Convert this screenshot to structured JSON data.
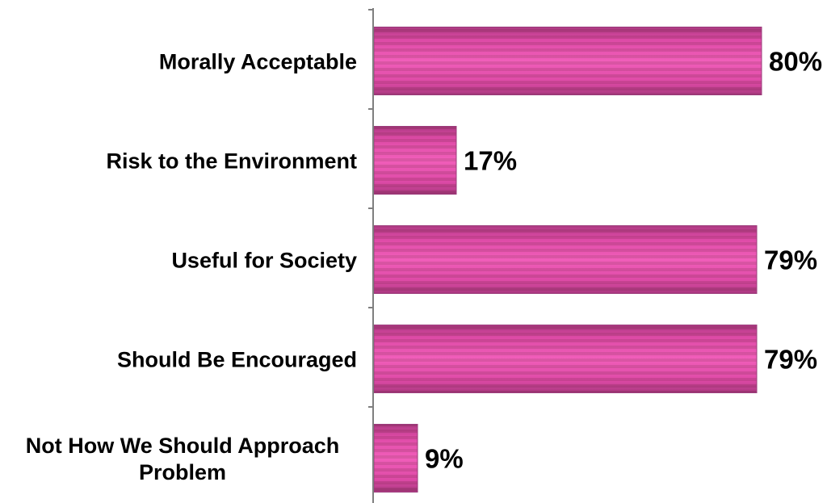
{
  "chart_data": {
    "type": "bar",
    "orientation": "horizontal",
    "categories": [
      "Morally Acceptable",
      "Risk to the Environment",
      "Useful for Society",
      "Should Be Encouraged",
      "Not How We Should Approach Problem"
    ],
    "category_lines": [
      [
        "Morally Acceptable"
      ],
      [
        "Risk to the Environment"
      ],
      [
        "Useful for Society"
      ],
      [
        "Should Be Encouraged"
      ],
      [
        "Not How We Should Approach",
        "Problem"
      ]
    ],
    "values": [
      80,
      17,
      79,
      79,
      9
    ],
    "value_labels": [
      "80%",
      "17%",
      "79%",
      "79%",
      "9%"
    ],
    "xlim": [
      0,
      100
    ],
    "title": "",
    "xlabel": "",
    "ylabel": "",
    "grid": false,
    "legend": "none",
    "colors": {
      "bar_light": "#f050b4",
      "bar_dark": "#9c3c7c",
      "bar_mid": "#d8489e",
      "axis": "#7f7f7f"
    }
  }
}
